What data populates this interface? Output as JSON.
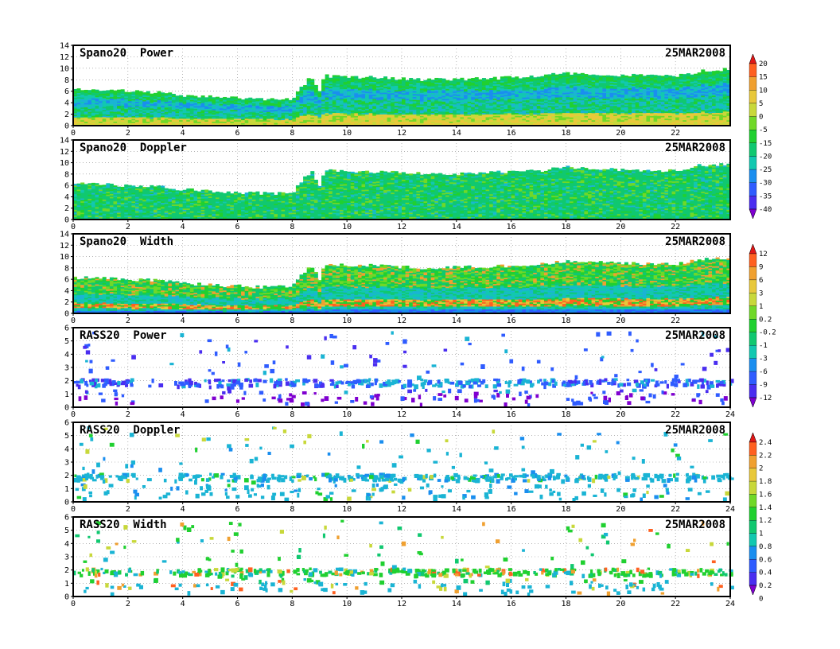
{
  "figure": {
    "date": "25MAR2008"
  },
  "colors": {
    "rainbow": [
      "#7f00d0",
      "#4a2ef0",
      "#2f5cff",
      "#1a8eef",
      "#1ab4d4",
      "#12c8b0",
      "#10c870",
      "#20d030",
      "#70d828",
      "#c8d83a",
      "#e8c83a",
      "#f0a030",
      "#ff6020",
      "#e01818"
    ]
  },
  "chart_data": [
    {
      "type": "heatmap",
      "title": "Spano20  Power",
      "date": "25MAR2008",
      "xlim": [
        0,
        24
      ],
      "ylim": [
        0,
        14
      ],
      "xticks": [
        "0",
        "2",
        "4",
        "6",
        "8",
        "10",
        "12",
        "14",
        "16",
        "18",
        "20",
        "22"
      ],
      "yticks": [
        "0",
        "2",
        "4",
        "6",
        "8",
        "10",
        "12",
        "14"
      ],
      "colorbar_group": "spano_power",
      "echo_top": {
        "x": [
          0,
          1,
          2,
          3,
          4,
          5,
          6,
          7,
          8,
          8.7,
          9,
          9.2,
          10,
          11,
          12,
          13,
          14,
          15,
          16,
          17,
          18,
          19,
          20,
          21,
          22,
          23,
          24
        ],
        "y": [
          6.3,
          6.2,
          6.0,
          5.8,
          5.3,
          5.0,
          4.8,
          4.6,
          4.7,
          8.6,
          6.0,
          8.7,
          8.5,
          8.4,
          8.2,
          8.0,
          8.1,
          8.2,
          8.4,
          8.6,
          9.2,
          9.0,
          8.8,
          8.7,
          8.6,
          9.6,
          9.8
        ]
      },
      "color_bands": "power"
    },
    {
      "type": "heatmap",
      "title": "Spano20  Doppler",
      "date": "25MAR2008",
      "xlim": [
        0,
        24
      ],
      "ylim": [
        0,
        14
      ],
      "xticks": [
        "0",
        "2",
        "4",
        "6",
        "8",
        "10",
        "12",
        "14",
        "16",
        "18",
        "20",
        "22"
      ],
      "yticks": [
        "0",
        "2",
        "4",
        "6",
        "8",
        "10",
        "12",
        "14"
      ],
      "colorbar_group": "spano_power",
      "color_bands": "doppler"
    },
    {
      "type": "heatmap",
      "title": "Spano20  Width",
      "date": "25MAR2008",
      "xlim": [
        0,
        24
      ],
      "ylim": [
        0,
        14
      ],
      "xticks": [
        "0",
        "2",
        "4",
        "6",
        "8",
        "10",
        "12",
        "14",
        "16",
        "18",
        "20",
        "22"
      ],
      "yticks": [
        "0",
        "2",
        "4",
        "6",
        "8",
        "10",
        "12",
        "14"
      ],
      "colorbar_group": "spano_width",
      "color_bands": "width"
    },
    {
      "type": "scatter",
      "title": "RASS20  Power",
      "date": "25MAR2008",
      "xlim": [
        0,
        24
      ],
      "ylim": [
        0,
        6
      ],
      "xticks": [
        "0",
        "2",
        "4",
        "6",
        "8",
        "10",
        "12",
        "14",
        "16",
        "18",
        "20",
        "22",
        "24"
      ],
      "yticks": [
        "0",
        "1",
        "2",
        "3",
        "4",
        "5",
        "6"
      ],
      "colorbar_group": "spano_width",
      "color_mode": "rass_power"
    },
    {
      "type": "scatter",
      "title": "RASS20  Doppler",
      "date": "25MAR2008",
      "xlim": [
        0,
        24
      ],
      "ylim": [
        0,
        6
      ],
      "xticks": [
        "0",
        "2",
        "4",
        "6",
        "8",
        "10",
        "12",
        "14",
        "16",
        "18",
        "20",
        "22",
        "24"
      ],
      "yticks": [
        "0",
        "1",
        "2",
        "3",
        "4",
        "5",
        "6"
      ],
      "colorbar_group": "rass",
      "color_mode": "rass_doppler"
    },
    {
      "type": "scatter",
      "title": "RASS20  Width",
      "date": "25MAR2008",
      "xlim": [
        0,
        24
      ],
      "ylim": [
        0,
        6
      ],
      "xticks": [
        "0",
        "2",
        "4",
        "6",
        "8",
        "10",
        "12",
        "14",
        "16",
        "18",
        "20",
        "22",
        "24"
      ],
      "yticks": [
        "0",
        "1",
        "2",
        "3",
        "4",
        "5",
        "6"
      ],
      "colorbar_group": "rass",
      "color_mode": "rass_width"
    }
  ],
  "colorbars": [
    {
      "id": "spano_power",
      "labels": [
        "20",
        "15",
        "10",
        "5",
        "0",
        "-5",
        "-15",
        "-20",
        "-25",
        "-30",
        "-35",
        "-40"
      ],
      "colors": [
        "#e01818",
        "#ff6020",
        "#f0a030",
        "#e8c83a",
        "#c8d83a",
        "#70d828",
        "#20d030",
        "#10c870",
        "#12c8b0",
        "#1a8eef",
        "#2f5cff",
        "#4a2ef0",
        "#7f00d0"
      ]
    },
    {
      "id": "spano_width",
      "labels": [
        "12",
        "9",
        "6",
        "3",
        "1",
        "0.2",
        "-0.2",
        "-1",
        "-3",
        "-6",
        "-9",
        "-12"
      ],
      "colors": [
        "#e01818",
        "#ff6020",
        "#f0a030",
        "#e8c83a",
        "#c8d83a",
        "#70d828",
        "#20d030",
        "#10c870",
        "#12c8b0",
        "#1a8eef",
        "#2f5cff",
        "#4a2ef0",
        "#7f00d0"
      ]
    },
    {
      "id": "rass",
      "labels": [
        "2.4",
        "2.2",
        "2",
        "1.8",
        "1.6",
        "1.4",
        "1.2",
        "1",
        "0.8",
        "0.6",
        "0.4",
        "0.2",
        "0"
      ],
      "colors": [
        "#e01818",
        "#ff6020",
        "#f0a030",
        "#e8c83a",
        "#c8d83a",
        "#70d828",
        "#20d030",
        "#10c870",
        "#12c8b0",
        "#1a8eef",
        "#2f5cff",
        "#4a2ef0",
        "#7f00d0"
      ]
    }
  ]
}
